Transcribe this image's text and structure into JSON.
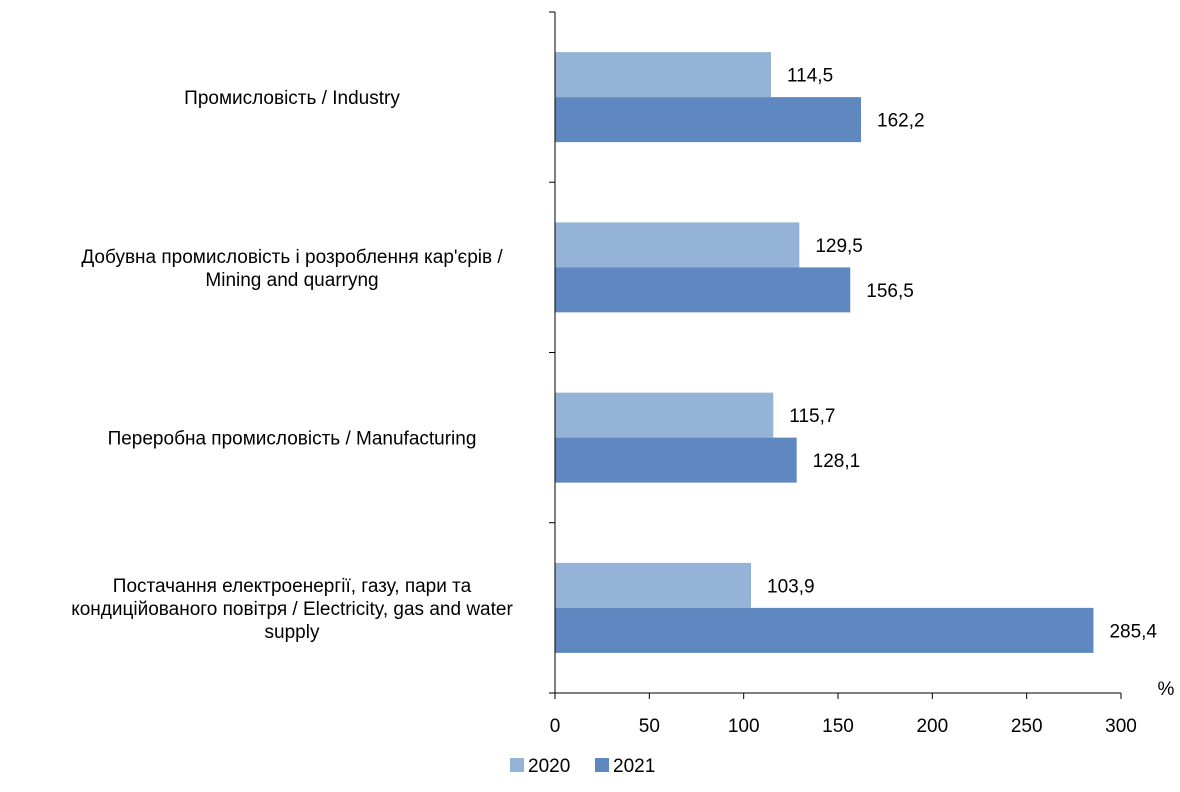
{
  "chart_data": {
    "type": "bar",
    "orientation": "horizontal",
    "categories": [
      [
        "Промисловість / Industry"
      ],
      [
        "Добувна промисловість і розроблення кар'єрів /",
        "Mining and quarryng"
      ],
      [
        "Переробна промисловість / Manufacturing"
      ],
      [
        "Постачання електроенергії, газу, пари та",
        "кондиційованого повітря / Electricity, gas and water",
        "supply"
      ]
    ],
    "series": [
      {
        "name": "2020",
        "color": "#95b3d7",
        "values": [
          114.5,
          129.5,
          115.7,
          103.9
        ],
        "labels": [
          "114,5",
          "129,5",
          "115,7",
          "103,9"
        ]
      },
      {
        "name": "2021",
        "color": "#5f87c0",
        "values": [
          162.2,
          156.5,
          128.1,
          285.4
        ],
        "labels": [
          "162,2",
          "156,5",
          "128,1",
          "285,4"
        ]
      }
    ],
    "x_ticks": [
      0,
      50,
      100,
      150,
      200,
      250,
      300
    ],
    "xlim": [
      0,
      300
    ],
    "unit_label": "%",
    "grid": false,
    "legend_position": "bottom"
  }
}
